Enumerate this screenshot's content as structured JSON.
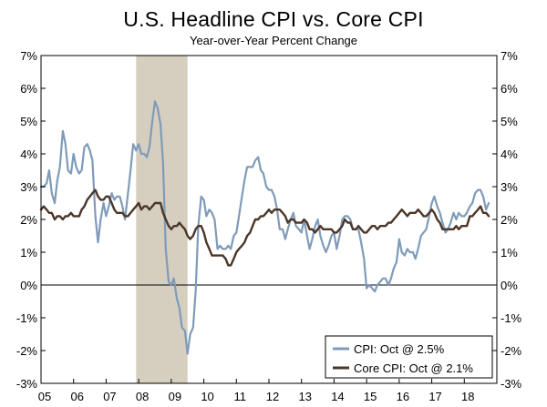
{
  "chart_data": {
    "type": "line",
    "title": "U.S. Headline CPI vs. Core CPI",
    "subtitle": "Year-over-Year Percent Change",
    "xlabel": "",
    "ylabel": "",
    "x_tick_labels": [
      "05",
      "06",
      "07",
      "08",
      "09",
      "10",
      "11",
      "12",
      "13",
      "14",
      "15",
      "16",
      "17",
      "18"
    ],
    "y_tick_labels": [
      "7%",
      "6%",
      "5%",
      "4%",
      "3%",
      "2%",
      "1%",
      "0%",
      "-1%",
      "-2%",
      "-3%"
    ],
    "ylim": [
      -3,
      7
    ],
    "xlim": [
      2005.0,
      2019.0
    ],
    "recession": {
      "start": 2007.92,
      "end": 2009.5
    },
    "zero_line": true,
    "legend": [
      "CPI: Oct @ 2.5%",
      "Core CPI: Oct @ 2.1%"
    ],
    "legend_position": "bottom-right",
    "series": [
      {
        "name": "CPI: Oct @ 2.5%",
        "color": "#7f9bb9",
        "x": [
          2005.0,
          2005.08,
          2005.17,
          2005.25,
          2005.33,
          2005.42,
          2005.5,
          2005.58,
          2005.67,
          2005.75,
          2005.83,
          2005.92,
          2006.0,
          2006.08,
          2006.17,
          2006.25,
          2006.33,
          2006.42,
          2006.5,
          2006.58,
          2006.67,
          2006.75,
          2006.83,
          2006.92,
          2007.0,
          2007.08,
          2007.17,
          2007.25,
          2007.33,
          2007.42,
          2007.5,
          2007.58,
          2007.67,
          2007.75,
          2007.83,
          2007.92,
          2008.0,
          2008.08,
          2008.17,
          2008.25,
          2008.33,
          2008.42,
          2008.5,
          2008.58,
          2008.67,
          2008.75,
          2008.83,
          2008.92,
          2009.0,
          2009.08,
          2009.17,
          2009.25,
          2009.33,
          2009.42,
          2009.5,
          2009.58,
          2009.67,
          2009.75,
          2009.83,
          2009.92,
          2010.0,
          2010.08,
          2010.17,
          2010.25,
          2010.33,
          2010.42,
          2010.5,
          2010.58,
          2010.67,
          2010.75,
          2010.83,
          2010.92,
          2011.0,
          2011.08,
          2011.17,
          2011.25,
          2011.33,
          2011.42,
          2011.5,
          2011.58,
          2011.67,
          2011.75,
          2011.83,
          2011.92,
          2012.0,
          2012.08,
          2012.17,
          2012.25,
          2012.33,
          2012.42,
          2012.5,
          2012.58,
          2012.67,
          2012.75,
          2012.83,
          2012.92,
          2013.0,
          2013.08,
          2013.17,
          2013.25,
          2013.33,
          2013.42,
          2013.5,
          2013.58,
          2013.67,
          2013.75,
          2013.83,
          2013.92,
          2014.0,
          2014.08,
          2014.17,
          2014.25,
          2014.33,
          2014.42,
          2014.5,
          2014.58,
          2014.67,
          2014.75,
          2014.83,
          2014.92,
          2015.0,
          2015.08,
          2015.17,
          2015.25,
          2015.33,
          2015.42,
          2015.5,
          2015.58,
          2015.67,
          2015.75,
          2015.83,
          2015.92,
          2016.0,
          2016.08,
          2016.17,
          2016.25,
          2016.33,
          2016.42,
          2016.5,
          2016.58,
          2016.67,
          2016.75,
          2016.83,
          2016.92,
          2017.0,
          2017.08,
          2017.17,
          2017.25,
          2017.33,
          2017.42,
          2017.5,
          2017.58,
          2017.67,
          2017.75,
          2017.83,
          2017.92,
          2018.0,
          2018.08,
          2018.17,
          2018.25,
          2018.33,
          2018.42,
          2018.5,
          2018.58,
          2018.67,
          2018.75
        ],
        "values": [
          3.0,
          3.0,
          3.1,
          3.5,
          2.8,
          2.5,
          3.2,
          3.6,
          4.7,
          4.3,
          3.5,
          3.4,
          4.0,
          3.6,
          3.4,
          3.5,
          4.2,
          4.3,
          4.1,
          3.8,
          2.1,
          1.3,
          2.0,
          2.5,
          2.1,
          2.4,
          2.8,
          2.6,
          2.7,
          2.7,
          2.4,
          2.0,
          2.8,
          3.5,
          4.3,
          4.1,
          4.3,
          4.0,
          4.0,
          3.9,
          4.2,
          5.0,
          5.6,
          5.4,
          4.9,
          3.7,
          1.1,
          0.1,
          0.0,
          0.2,
          -0.4,
          -0.7,
          -1.3,
          -1.4,
          -2.1,
          -1.5,
          -1.3,
          -0.2,
          1.8,
          2.7,
          2.6,
          2.1,
          2.3,
          2.2,
          2.0,
          1.1,
          1.2,
          1.1,
          1.1,
          1.2,
          1.1,
          1.5,
          1.6,
          2.1,
          2.7,
          3.2,
          3.6,
          3.6,
          3.6,
          3.8,
          3.9,
          3.5,
          3.4,
          3.0,
          2.9,
          2.9,
          2.7,
          2.3,
          1.7,
          1.7,
          1.4,
          1.7,
          2.0,
          2.2,
          1.8,
          1.7,
          1.6,
          2.0,
          1.5,
          1.1,
          1.4,
          1.8,
          2.0,
          1.5,
          1.2,
          1.0,
          1.2,
          1.5,
          1.6,
          1.1,
          1.5,
          2.0,
          2.1,
          2.1,
          2.0,
          1.7,
          1.7,
          1.7,
          1.3,
          0.8,
          -0.1,
          0.0,
          -0.1,
          -0.2,
          0.0,
          0.1,
          0.2,
          0.2,
          0.0,
          0.2,
          0.5,
          0.7,
          1.4,
          1.0,
          0.9,
          1.1,
          1.0,
          1.0,
          0.8,
          1.1,
          1.5,
          1.6,
          1.7,
          2.1,
          2.5,
          2.7,
          2.4,
          2.2,
          1.9,
          1.6,
          1.7,
          1.9,
          2.2,
          2.0,
          2.2,
          2.1,
          2.1,
          2.2,
          2.4,
          2.5,
          2.8,
          2.9,
          2.9,
          2.7,
          2.3,
          2.5
        ]
      },
      {
        "name": "Core CPI: Oct @ 2.1%",
        "color": "#4b3628",
        "x": [
          2005.0,
          2005.08,
          2005.17,
          2005.25,
          2005.33,
          2005.42,
          2005.5,
          2005.58,
          2005.67,
          2005.75,
          2005.83,
          2005.92,
          2006.0,
          2006.08,
          2006.17,
          2006.25,
          2006.33,
          2006.42,
          2006.5,
          2006.58,
          2006.67,
          2006.75,
          2006.83,
          2006.92,
          2007.0,
          2007.08,
          2007.17,
          2007.25,
          2007.33,
          2007.42,
          2007.5,
          2007.58,
          2007.67,
          2007.75,
          2007.83,
          2007.92,
          2008.0,
          2008.08,
          2008.17,
          2008.25,
          2008.33,
          2008.42,
          2008.5,
          2008.58,
          2008.67,
          2008.75,
          2008.83,
          2008.92,
          2009.0,
          2009.08,
          2009.17,
          2009.25,
          2009.33,
          2009.42,
          2009.5,
          2009.58,
          2009.67,
          2009.75,
          2009.83,
          2009.92,
          2010.0,
          2010.08,
          2010.17,
          2010.25,
          2010.33,
          2010.42,
          2010.5,
          2010.58,
          2010.67,
          2010.75,
          2010.83,
          2010.92,
          2011.0,
          2011.08,
          2011.17,
          2011.25,
          2011.33,
          2011.42,
          2011.5,
          2011.58,
          2011.67,
          2011.75,
          2011.83,
          2011.92,
          2012.0,
          2012.08,
          2012.17,
          2012.25,
          2012.33,
          2012.42,
          2012.5,
          2012.58,
          2012.67,
          2012.75,
          2012.83,
          2012.92,
          2013.0,
          2013.08,
          2013.17,
          2013.25,
          2013.33,
          2013.42,
          2013.5,
          2013.58,
          2013.67,
          2013.75,
          2013.83,
          2013.92,
          2014.0,
          2014.08,
          2014.17,
          2014.25,
          2014.33,
          2014.42,
          2014.5,
          2014.58,
          2014.67,
          2014.75,
          2014.83,
          2014.92,
          2015.0,
          2015.08,
          2015.17,
          2015.25,
          2015.33,
          2015.42,
          2015.5,
          2015.58,
          2015.67,
          2015.75,
          2015.83,
          2015.92,
          2016.0,
          2016.08,
          2016.17,
          2016.25,
          2016.33,
          2016.42,
          2016.5,
          2016.58,
          2016.67,
          2016.75,
          2016.83,
          2016.92,
          2017.0,
          2017.08,
          2017.17,
          2017.25,
          2017.33,
          2017.42,
          2017.5,
          2017.58,
          2017.67,
          2017.75,
          2017.83,
          2017.92,
          2018.0,
          2018.08,
          2018.17,
          2018.25,
          2018.33,
          2018.42,
          2018.5,
          2018.58,
          2018.67,
          2018.75
        ],
        "values": [
          2.3,
          2.4,
          2.3,
          2.2,
          2.2,
          2.0,
          2.1,
          2.1,
          2.0,
          2.1,
          2.1,
          2.2,
          2.1,
          2.1,
          2.1,
          2.3,
          2.4,
          2.6,
          2.7,
          2.8,
          2.9,
          2.7,
          2.6,
          2.6,
          2.7,
          2.7,
          2.5,
          2.3,
          2.2,
          2.2,
          2.2,
          2.1,
          2.1,
          2.2,
          2.3,
          2.4,
          2.5,
          2.3,
          2.4,
          2.4,
          2.3,
          2.4,
          2.5,
          2.5,
          2.5,
          2.2,
          2.0,
          1.8,
          1.7,
          1.8,
          1.8,
          1.9,
          1.8,
          1.7,
          1.5,
          1.4,
          1.5,
          1.7,
          1.8,
          1.8,
          1.6,
          1.3,
          1.1,
          0.9,
          0.9,
          0.9,
          0.9,
          0.9,
          0.8,
          0.6,
          0.6,
          0.8,
          1.0,
          1.1,
          1.2,
          1.3,
          1.5,
          1.6,
          1.8,
          2.0,
          2.0,
          2.1,
          2.1,
          2.2,
          2.3,
          2.2,
          2.3,
          2.3,
          2.3,
          2.2,
          2.1,
          1.9,
          2.0,
          2.0,
          1.9,
          1.9,
          1.9,
          2.0,
          1.9,
          1.7,
          1.7,
          1.6,
          1.7,
          1.8,
          1.7,
          1.7,
          1.7,
          1.7,
          1.6,
          1.6,
          1.7,
          1.8,
          2.0,
          1.9,
          1.9,
          1.7,
          1.7,
          1.8,
          1.7,
          1.6,
          1.6,
          1.7,
          1.8,
          1.8,
          1.7,
          1.8,
          1.8,
          1.8,
          1.9,
          1.9,
          2.0,
          2.1,
          2.2,
          2.3,
          2.2,
          2.1,
          2.2,
          2.2,
          2.2,
          2.3,
          2.2,
          2.1,
          2.1,
          2.2,
          2.3,
          2.2,
          2.0,
          1.9,
          1.7,
          1.7,
          1.7,
          1.7,
          1.7,
          1.8,
          1.7,
          1.8,
          1.8,
          1.8,
          2.1,
          2.1,
          2.2,
          2.3,
          2.4,
          2.2,
          2.2,
          2.1
        ]
      }
    ]
  }
}
